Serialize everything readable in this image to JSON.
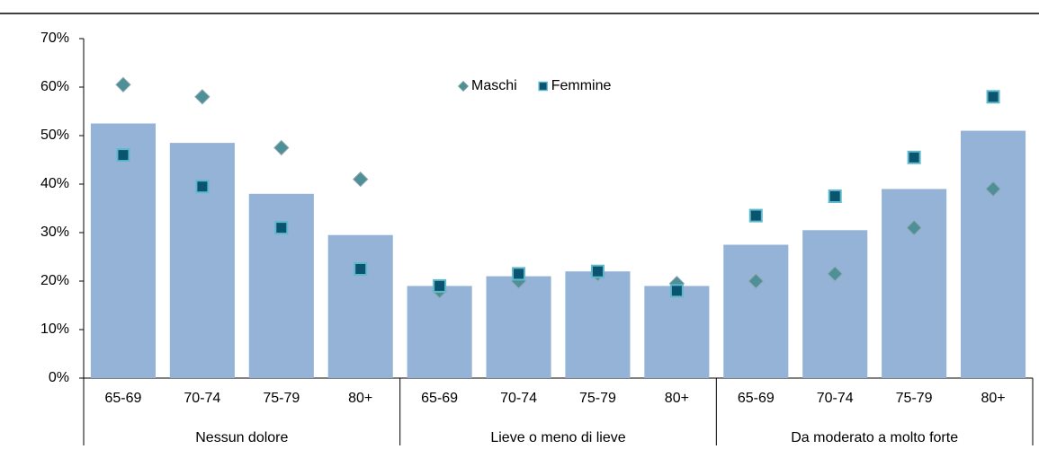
{
  "chart_data": {
    "type": "bar_markers",
    "groups": [
      {
        "name": "Nessun dolore",
        "categories": [
          "65-69",
          "70-74",
          "75-79",
          "80+"
        ]
      },
      {
        "name": "Lieve o meno di lieve",
        "categories": [
          "65-69",
          "70-74",
          "75-79",
          "80+"
        ]
      },
      {
        "name": "Da moderato a molto forte",
        "categories": [
          "65-69",
          "70-74",
          "75-79",
          "80+"
        ]
      }
    ],
    "values": [
      52.5,
      48.5,
      38,
      29.5,
      19,
      21,
      22,
      19,
      27.5,
      30.5,
      39,
      51
    ],
    "color": "#95b3d7",
    "series": [
      {
        "name": "Maschi",
        "color": "#4f8f98",
        "marker": "diamond",
        "values": [
          60.5,
          58,
          47.5,
          41,
          18,
          20,
          21.5,
          19.5,
          20,
          21.5,
          31,
          39
        ]
      },
      {
        "name": "Femmine",
        "color": "#0b5470",
        "marker": "square",
        "values": [
          46,
          39.5,
          31,
          22.5,
          19,
          21.5,
          22,
          18,
          33.5,
          37.5,
          45.5,
          58
        ]
      }
    ],
    "ylim": [
      0,
      70
    ],
    "yticks": [
      {
        "value": 0,
        "label": "0%"
      },
      {
        "value": 10,
        "label": "10%"
      },
      {
        "value": 20,
        "label": "20%"
      },
      {
        "value": 30,
        "label": "30%"
      },
      {
        "value": 40,
        "label": "40%"
      },
      {
        "value": 50,
        "label": "50%"
      },
      {
        "value": 60,
        "label": "60%"
      },
      {
        "value": 70,
        "label": "70%"
      }
    ],
    "legend": "top-center"
  }
}
